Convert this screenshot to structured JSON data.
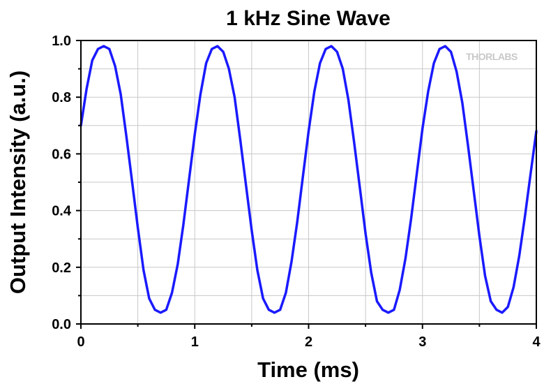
{
  "chart_data": {
    "type": "line",
    "title": "1 kHz Sine Wave",
    "xlabel": "Time (ms)",
    "ylabel": "Output Intensity (a.u.)",
    "xlim": [
      0,
      4
    ],
    "ylim": [
      0,
      1.0
    ],
    "xticks": [
      0,
      1,
      2,
      3,
      4
    ],
    "xtick_labels": [
      "0",
      "1",
      "2",
      "3",
      "4"
    ],
    "yticks": [
      0,
      0.2,
      0.4,
      0.6,
      0.8,
      1.0
    ],
    "ytick_labels": [
      "0.0",
      "0.2",
      "0.4",
      "0.6",
      "0.8",
      "1.0"
    ],
    "grid": true,
    "watermark": "THORLABS",
    "series": [
      {
        "color": "#1a1aff",
        "x": [
          0,
          0.05,
          0.1,
          0.15,
          0.2,
          0.25,
          0.3,
          0.35,
          0.4,
          0.45,
          0.5,
          0.55,
          0.6,
          0.65,
          0.7,
          0.75,
          0.8,
          0.85,
          0.9,
          0.95,
          1.0,
          1.05,
          1.1,
          1.15,
          1.2,
          1.25,
          1.3,
          1.35,
          1.4,
          1.45,
          1.5,
          1.55,
          1.6,
          1.65,
          1.7,
          1.75,
          1.8,
          1.85,
          1.9,
          1.95,
          2.0,
          2.05,
          2.1,
          2.15,
          2.2,
          2.25,
          2.3,
          2.35,
          2.4,
          2.45,
          2.5,
          2.55,
          2.6,
          2.65,
          2.7,
          2.75,
          2.8,
          2.85,
          2.9,
          2.95,
          3.0,
          3.05,
          3.1,
          3.15,
          3.2,
          3.25,
          3.3,
          3.35,
          3.4,
          3.45,
          3.5,
          3.55,
          3.6,
          3.65,
          3.7,
          3.75,
          3.8,
          3.85,
          3.9,
          3.95,
          4.0
        ],
        "y": [
          0.7,
          0.83,
          0.93,
          0.97,
          0.98,
          0.97,
          0.91,
          0.81,
          0.66,
          0.5,
          0.34,
          0.19,
          0.09,
          0.05,
          0.04,
          0.05,
          0.11,
          0.21,
          0.35,
          0.51,
          0.67,
          0.81,
          0.92,
          0.97,
          0.98,
          0.96,
          0.9,
          0.8,
          0.65,
          0.49,
          0.33,
          0.19,
          0.09,
          0.05,
          0.04,
          0.05,
          0.11,
          0.22,
          0.36,
          0.52,
          0.68,
          0.82,
          0.92,
          0.97,
          0.98,
          0.96,
          0.9,
          0.79,
          0.64,
          0.48,
          0.32,
          0.18,
          0.08,
          0.05,
          0.04,
          0.05,
          0.12,
          0.23,
          0.37,
          0.53,
          0.69,
          0.82,
          0.92,
          0.97,
          0.98,
          0.96,
          0.89,
          0.78,
          0.63,
          0.47,
          0.31,
          0.17,
          0.08,
          0.05,
          0.04,
          0.06,
          0.13,
          0.24,
          0.38,
          0.53,
          0.68
        ]
      }
    ]
  }
}
